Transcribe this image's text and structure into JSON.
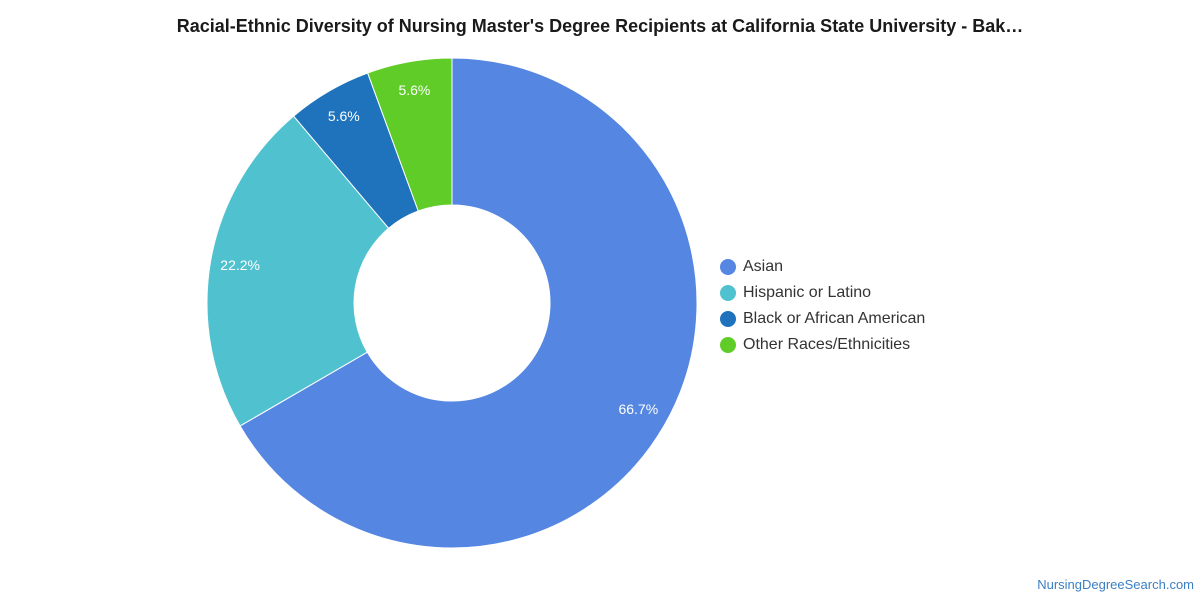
{
  "chart_data": {
    "type": "pie",
    "donut": true,
    "title": "Racial-Ethnic Diversity of Nursing Master's Degree Recipients at California State University - Bak…",
    "legend_position": "right",
    "slices": [
      {
        "name": "Asian",
        "value": 66.7,
        "label": "66.7%",
        "color": "#5486e2"
      },
      {
        "name": "Hispanic or Latino",
        "value": 22.2,
        "label": "22.2%",
        "color": "#50c2cf"
      },
      {
        "name": "Black or African American",
        "value": 5.6,
        "label": "5.6%",
        "color": "#1f73bd"
      },
      {
        "name": "Other Races/Ethnicities",
        "value": 5.6,
        "label": "5.6%",
        "color": "#5fcc27"
      }
    ]
  },
  "footer": {
    "source": "NursingDegreeSearch.com"
  }
}
